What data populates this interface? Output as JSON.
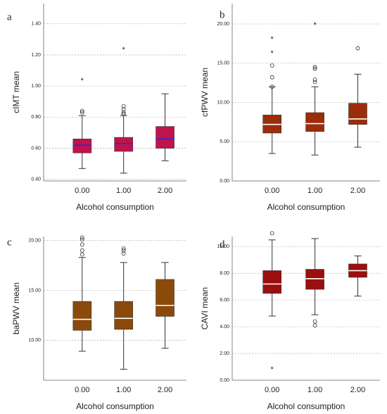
{
  "chart_data": [
    {
      "type": "box",
      "label": "a",
      "ylabel": "cIMT mean",
      "xlabel": "Alcohol consumption",
      "categories": [
        "0.00",
        "1.00",
        "2.00"
      ],
      "color": "#c0134b",
      "median_color": "#2b2bd6",
      "boxes": [
        {
          "min": 0.47,
          "q1": 0.57,
          "median": 0.62,
          "q3": 0.66,
          "max": 0.81,
          "outliers": [
            0.84,
            0.83
          ],
          "extremes": [
            1.04
          ]
        },
        {
          "min": 0.44,
          "q1": 0.58,
          "median": 0.63,
          "q3": 0.67,
          "max": 0.81,
          "outliers": [
            0.87,
            0.85,
            0.83,
            0.82,
            0.82
          ],
          "extremes": [
            1.24
          ]
        },
        {
          "min": 0.52,
          "q1": 0.6,
          "median": 0.66,
          "q3": 0.74,
          "max": 0.95,
          "outliers": [],
          "extremes": []
        }
      ],
      "ylim": [
        0.39,
        1.53
      ],
      "yticks": [
        {
          "value": 0.4,
          "label": "0.40"
        },
        {
          "value": 0.6,
          "label": "0.60"
        },
        {
          "value": 0.8,
          "label": "0.80"
        },
        {
          "value": 1.0,
          "label": "1.00"
        },
        {
          "value": 1.2,
          "label": "1.20"
        },
        {
          "value": 1.4,
          "label": "1.40"
        }
      ],
      "grid": true
    },
    {
      "type": "box",
      "label": "b",
      "ylabel": "cfPWV mean",
      "xlabel": "Alcohol consumption",
      "categories": [
        "0.00",
        "1.00",
        "2.00"
      ],
      "color": "#9b2d0c",
      "median_color": "#ffffff",
      "boxes": [
        {
          "min": 3.5,
          "q1": 6.1,
          "median": 7.2,
          "q3": 8.4,
          "max": 12,
          "outliers": [
            14.7,
            13.2,
            12
          ],
          "extremes": [
            18.2,
            16.4
          ]
        },
        {
          "min": 3.3,
          "q1": 6.3,
          "median": 7.3,
          "q3": 8.7,
          "max": 12,
          "outliers": [
            14.5,
            14.3,
            12.9,
            12.6
          ],
          "extremes": [
            20
          ]
        },
        {
          "min": 4.3,
          "q1": 7.2,
          "median": 7.9,
          "q3": 9.9,
          "max": 13.6,
          "outliers": [
            16.9
          ],
          "extremes": []
        }
      ],
      "ylim": [
        0,
        22.6
      ],
      "yticks": [
        {
          "value": 0,
          "label": "0.00"
        },
        {
          "value": 5,
          "label": "5.00"
        },
        {
          "value": 10,
          "label": "10.00"
        },
        {
          "value": 15,
          "label": "15.00"
        },
        {
          "value": 20,
          "label": "20.00"
        }
      ],
      "grid": true
    },
    {
      "type": "box",
      "label": "c",
      "ylabel": "baPWV mean",
      "xlabel": "Alcohol consumption",
      "categories": [
        "0.00",
        "1.00",
        "2.00"
      ],
      "color": "#8b4a0b",
      "median_color": "#ffffff",
      "boxes": [
        {
          "min": 8.9,
          "q1": 11.0,
          "median": 12.1,
          "q3": 13.9,
          "max": 18.3,
          "outliers": [
            20.3,
            20.1,
            19.6,
            19.0,
            18.6
          ],
          "extremes": []
        },
        {
          "min": 7.1,
          "q1": 11.1,
          "median": 12.2,
          "q3": 13.9,
          "max": 17.8,
          "outliers": [
            19.2,
            19.0,
            18.7
          ],
          "extremes": []
        },
        {
          "min": 9.2,
          "q1": 12.4,
          "median": 13.5,
          "q3": 16.1,
          "max": 17.8,
          "outliers": [],
          "extremes": []
        }
      ],
      "ylim": [
        6,
        20.4
      ],
      "yticks": [
        {
          "value": 10,
          "label": "10.00"
        },
        {
          "value": 15,
          "label": "15.00"
        },
        {
          "value": 20,
          "label": "20.00"
        }
      ],
      "grid": true
    },
    {
      "type": "box",
      "label": "d",
      "ylabel": "CAVI mean",
      "xlabel": "Alcohol consumption",
      "categories": [
        "0.00",
        "1.00",
        "2.00"
      ],
      "color": "#9b0f0f",
      "median_color": "#ffffff",
      "boxes": [
        {
          "min": 4.8,
          "q1": 6.5,
          "median": 7.2,
          "q3": 8.2,
          "max": 10.5,
          "outliers": [
            11.0
          ],
          "extremes": [
            0.9
          ]
        },
        {
          "min": 4.9,
          "q1": 6.8,
          "median": 7.6,
          "q3": 8.3,
          "max": 10.6,
          "outliers": [
            4.4,
            4.1
          ],
          "extremes": []
        },
        {
          "min": 6.3,
          "q1": 7.7,
          "median": 8.2,
          "q3": 8.7,
          "max": 9.3,
          "outliers": [],
          "extremes": []
        }
      ],
      "ylim": [
        0,
        10.75
      ],
      "yticks": [
        {
          "value": 0,
          "label": "0.00"
        },
        {
          "value": 2,
          "label": "2.00"
        },
        {
          "value": 4,
          "label": "4.00"
        },
        {
          "value": 6,
          "label": "6.00"
        },
        {
          "value": 8,
          "label": "8.00"
        },
        {
          "value": 10,
          "label": "10.00"
        }
      ],
      "grid": true
    }
  ]
}
